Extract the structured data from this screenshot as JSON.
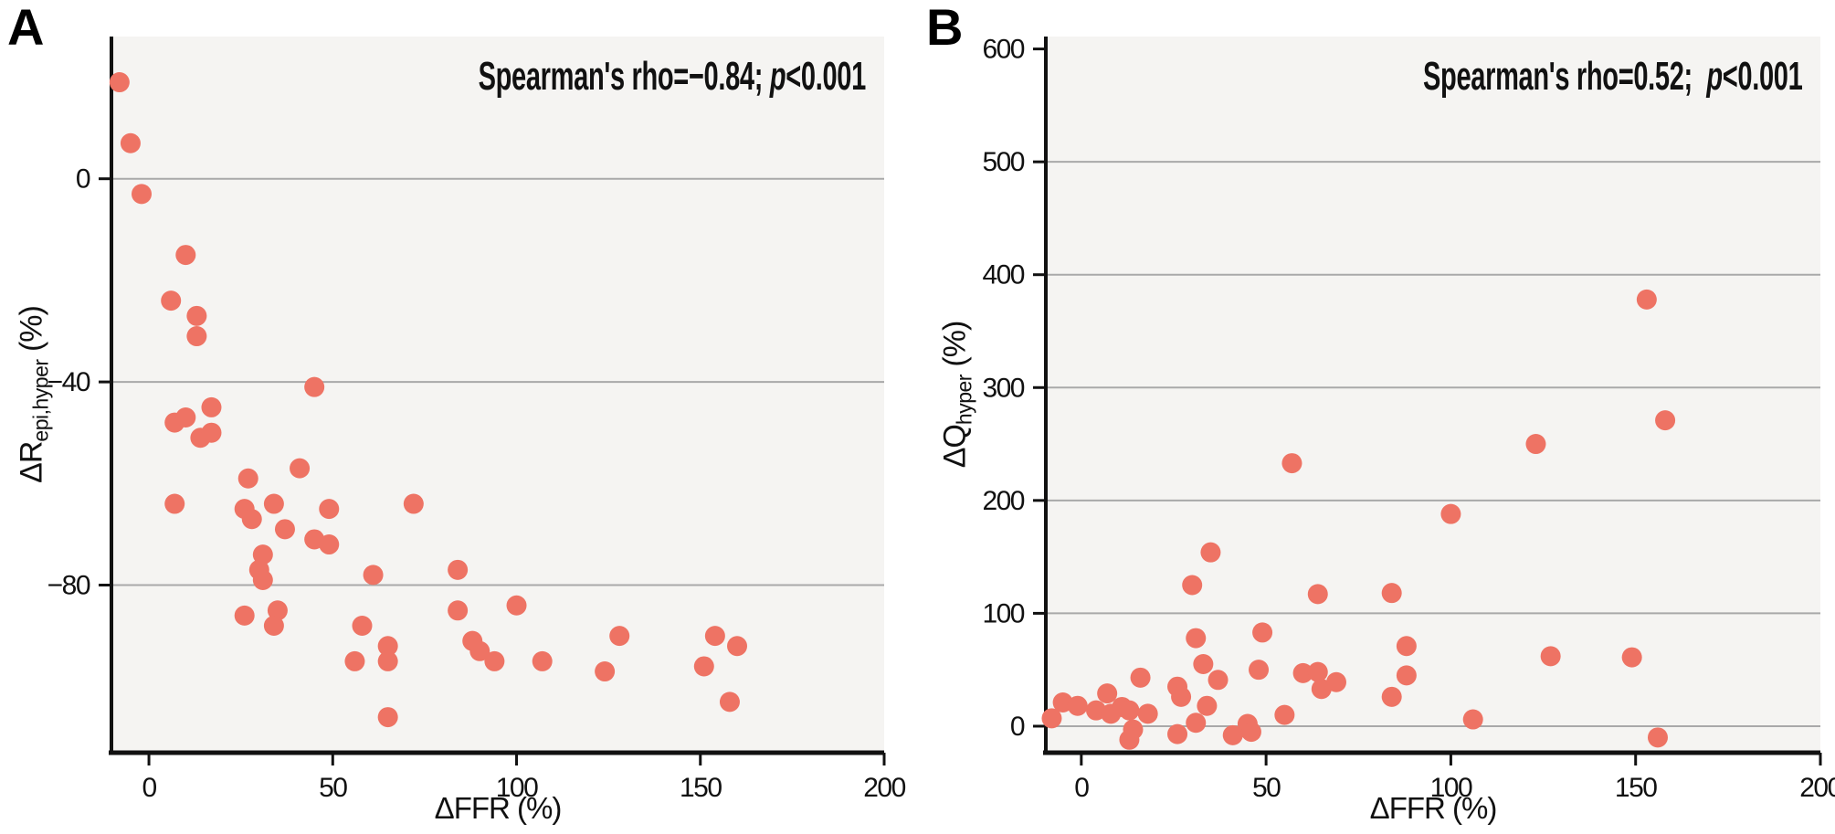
{
  "figure": {
    "panels": [
      {
        "corner_label": "A",
        "annotation": {
          "before": "Spearman's rho=−0.84; ",
          "italic": "p",
          "after": "<0.001"
        },
        "x_axis_label": "ΔFFR (%)",
        "y_axis_label": {
          "main": "ΔR",
          "sub": "epi,hyper",
          "unit": " (%)"
        }
      },
      {
        "corner_label": "B",
        "annotation": {
          "before": "Spearman's rho=0.52;  ",
          "italic": "p",
          "after": "<0.001"
        },
        "x_axis_label": "ΔFFR (%)",
        "y_axis_label": {
          "main": "ΔQ",
          "sub": "hyper",
          "unit": " (%)"
        }
      }
    ],
    "colors": {
      "marker": "#ee7364",
      "plot_background": "#f5f4f2",
      "gridline": "#a9a9a9",
      "axis": "#111111"
    }
  },
  "chart_data": [
    {
      "type": "scatter",
      "panel": "A",
      "title": "Spearman's rho=−0.84; p<0.001",
      "xlabel": "ΔFFR (%)",
      "ylabel": "ΔR epi,hyper (%)",
      "xlim": [
        -10.2,
        200
      ],
      "ylim": [
        -113,
        28
      ],
      "x_ticks": [
        0,
        50,
        100,
        150,
        200
      ],
      "y_ticks": [
        0,
        -40,
        -80
      ],
      "gridline_values": [
        0,
        -40,
        -80
      ],
      "grid": "horizontal",
      "legend": "none",
      "points": [
        [
          -8,
          19
        ],
        [
          -5,
          7
        ],
        [
          -2,
          -3
        ],
        [
          10,
          -15
        ],
        [
          6,
          -24
        ],
        [
          13,
          -27
        ],
        [
          13,
          -31
        ],
        [
          17,
          -45
        ],
        [
          7,
          -48
        ],
        [
          10,
          -47
        ],
        [
          14,
          -51
        ],
        [
          17,
          -50
        ],
        [
          45,
          -41
        ],
        [
          41,
          -57
        ],
        [
          27,
          -59
        ],
        [
          7,
          -64
        ],
        [
          34,
          -64
        ],
        [
          26,
          -65
        ],
        [
          28,
          -67
        ],
        [
          49,
          -65
        ],
        [
          72,
          -64
        ],
        [
          37,
          -69
        ],
        [
          45,
          -71
        ],
        [
          49,
          -72
        ],
        [
          31,
          -74
        ],
        [
          30,
          -77
        ],
        [
          31,
          -79
        ],
        [
          61,
          -78
        ],
        [
          84,
          -77
        ],
        [
          26,
          -86
        ],
        [
          35,
          -85
        ],
        [
          34,
          -88
        ],
        [
          58,
          -88
        ],
        [
          56,
          -95
        ],
        [
          65,
          -92
        ],
        [
          65,
          -95
        ],
        [
          84,
          -85
        ],
        [
          88,
          -91
        ],
        [
          90,
          -93
        ],
        [
          94,
          -95
        ],
        [
          65,
          -106
        ],
        [
          100,
          -84
        ],
        [
          128,
          -90
        ],
        [
          107,
          -95
        ],
        [
          124,
          -97
        ],
        [
          154,
          -90
        ],
        [
          160,
          -92
        ],
        [
          151,
          -96
        ],
        [
          158,
          -103
        ]
      ]
    },
    {
      "type": "scatter",
      "panel": "B",
      "title": "Spearman's rho=0.52;  p<0.001",
      "xlabel": "ΔFFR (%)",
      "ylabel": "ΔQ hyper (%)",
      "xlim": [
        -9.6,
        200
      ],
      "ylim": [
        -23.5,
        611
      ],
      "x_ticks": [
        0,
        50,
        100,
        150,
        200
      ],
      "y_ticks": [
        600,
        500,
        400,
        300,
        200,
        100,
        0
      ],
      "gridline_values": [
        500,
        400,
        300,
        200,
        100,
        0
      ],
      "grid": "horizontal",
      "legend": "none",
      "points": [
        [
          -8,
          7
        ],
        [
          -5,
          21
        ],
        [
          -1,
          18
        ],
        [
          4,
          14
        ],
        [
          7,
          29
        ],
        [
          8,
          11
        ],
        [
          11,
          17
        ],
        [
          13,
          14
        ],
        [
          14,
          -3
        ],
        [
          13,
          -12
        ],
        [
          16,
          43
        ],
        [
          18,
          11
        ],
        [
          26,
          -7
        ],
        [
          26,
          35
        ],
        [
          27,
          26
        ],
        [
          31,
          3
        ],
        [
          31,
          78
        ],
        [
          33,
          55
        ],
        [
          34,
          18
        ],
        [
          37,
          41
        ],
        [
          41,
          -8
        ],
        [
          45,
          2
        ],
        [
          46,
          -5
        ],
        [
          48,
          50
        ],
        [
          49,
          83
        ],
        [
          55,
          10
        ],
        [
          60,
          47
        ],
        [
          64,
          48
        ],
        [
          65,
          33
        ],
        [
          69,
          39
        ],
        [
          84,
          26
        ],
        [
          88,
          71
        ],
        [
          88,
          45
        ],
        [
          30,
          125
        ],
        [
          35,
          154
        ],
        [
          57,
          233
        ],
        [
          64,
          117
        ],
        [
          84,
          118
        ],
        [
          100,
          188
        ],
        [
          106,
          6
        ],
        [
          123,
          250
        ],
        [
          127,
          62
        ],
        [
          149,
          61
        ],
        [
          153,
          378
        ],
        [
          156,
          -10
        ],
        [
          158,
          271
        ]
      ]
    }
  ]
}
